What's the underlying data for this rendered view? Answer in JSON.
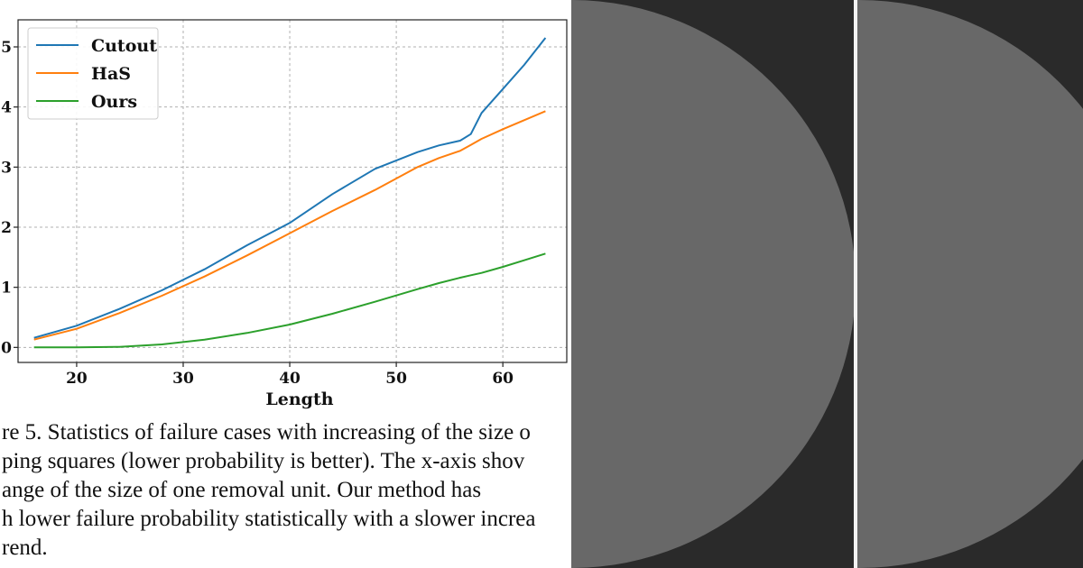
{
  "chart_data": {
    "type": "line",
    "xlabel": "Length",
    "ylabel": "",
    "xlim": [
      14.5,
      66
    ],
    "ylim": [
      -0.25,
      5.45
    ],
    "xticks": [
      20,
      30,
      40,
      50,
      60
    ],
    "yticks": [
      0,
      1,
      2,
      3,
      4,
      5
    ],
    "x_tick_labels": [
      "20",
      "30",
      "40",
      "50",
      "60"
    ],
    "y_tick_labels": [
      "0",
      "1",
      "2",
      "3",
      "4",
      "5"
    ],
    "grid": true,
    "legend_position": "top-left",
    "x": [
      16,
      20,
      24,
      28,
      32,
      36,
      40,
      44,
      48,
      52,
      54,
      56,
      57,
      58,
      60,
      62,
      64
    ],
    "series": [
      {
        "name": "Cutout",
        "color": "#1f77b4",
        "values": [
          0.16,
          0.36,
          0.64,
          0.95,
          1.3,
          1.7,
          2.07,
          2.55,
          2.97,
          3.25,
          3.36,
          3.44,
          3.55,
          3.9,
          4.3,
          4.7,
          5.15
        ]
      },
      {
        "name": "HaS",
        "color": "#ff7f0e",
        "values": [
          0.13,
          0.31,
          0.57,
          0.86,
          1.18,
          1.53,
          1.9,
          2.27,
          2.62,
          3.0,
          3.15,
          3.27,
          3.37,
          3.47,
          3.63,
          3.78,
          3.93
        ]
      },
      {
        "name": "Ours",
        "color": "#2ca02c",
        "values": [
          0.0,
          0.0,
          0.01,
          0.05,
          0.13,
          0.24,
          0.38,
          0.56,
          0.76,
          0.97,
          1.07,
          1.16,
          1.2,
          1.24,
          1.34,
          1.45,
          1.56
        ]
      }
    ]
  },
  "caption": {
    "lines": [
      "re 5. Statistics of failure cases with increasing of the size o",
      "ping squares (lower probability is better). The x-axis shov",
      "ange of the size of one removal unit. Our method has",
      "h lower failure probability statistically with a slower increa",
      "rend."
    ]
  }
}
